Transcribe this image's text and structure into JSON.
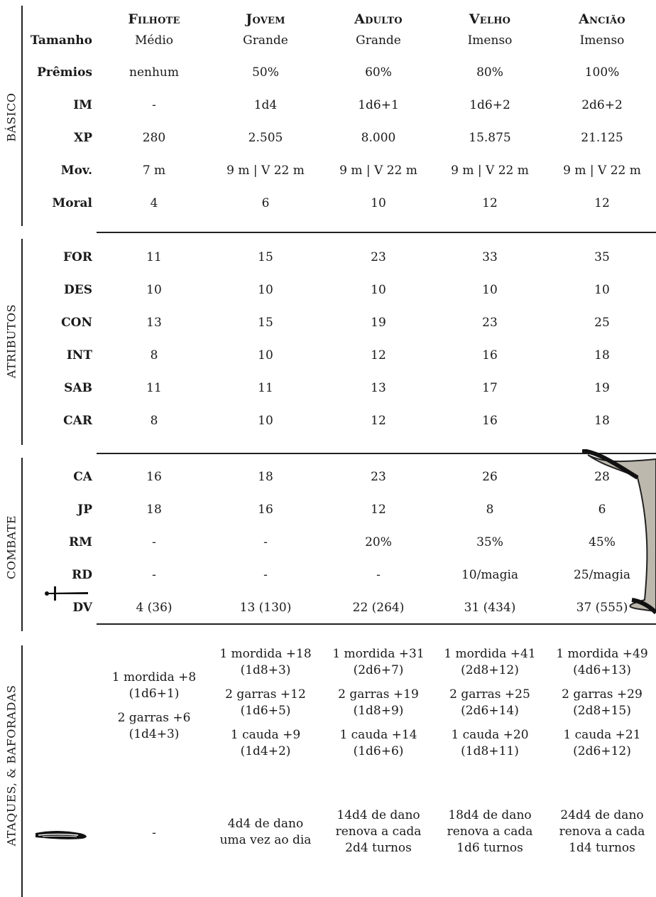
{
  "columns": [
    "Filhote",
    "Jovem",
    "Adulto",
    "Velho",
    "Ancião"
  ],
  "sections": {
    "basico": "Básico",
    "atributos": "Atributos",
    "combate": "Combate",
    "ataques": "Ataques, & Baforadas"
  },
  "rows": [
    {
      "label": "Tamanho",
      "values": [
        "Médio",
        "Grande",
        "Grande",
        "Imenso",
        "Imenso"
      ]
    },
    {
      "label": "Prêmios",
      "values": [
        "nenhum",
        "50%",
        "60%",
        "80%",
        "100%"
      ]
    },
    {
      "label": "IM",
      "values": [
        "-",
        "1d4",
        "1d6+1",
        "1d6+2",
        "2d6+2"
      ]
    },
    {
      "label": "XP",
      "values": [
        "280",
        "2.505",
        "8.000",
        "15.875",
        "21.125"
      ]
    },
    {
      "label": "Mov.",
      "values": [
        "7 m",
        "9 m | V 22 m",
        "9 m | V 22 m",
        "9 m | V 22 m",
        "9 m | V 22 m"
      ]
    },
    {
      "label": "Moral",
      "values": [
        "4",
        "6",
        "10",
        "12",
        "12"
      ]
    },
    {
      "label": "FOR",
      "values": [
        "11",
        "15",
        "23",
        "33",
        "35"
      ]
    },
    {
      "label": "DES",
      "values": [
        "10",
        "10",
        "10",
        "10",
        "10"
      ]
    },
    {
      "label": "CON",
      "values": [
        "13",
        "15",
        "19",
        "23",
        "25"
      ]
    },
    {
      "label": "INT",
      "values": [
        "8",
        "10",
        "12",
        "16",
        "18"
      ]
    },
    {
      "label": "SAB",
      "values": [
        "11",
        "11",
        "13",
        "17",
        "19"
      ]
    },
    {
      "label": "CAR",
      "values": [
        "8",
        "10",
        "12",
        "16",
        "18"
      ]
    },
    {
      "label": "CA",
      "values": [
        "16",
        "18",
        "23",
        "26",
        "28"
      ]
    },
    {
      "label": "JP",
      "values": [
        "18",
        "16",
        "12",
        "8",
        "6"
      ]
    },
    {
      "label": "RM",
      "values": [
        "-",
        "-",
        "20%",
        "35%",
        "45%"
      ]
    },
    {
      "label": "RD",
      "values": [
        "-",
        "-",
        "-",
        "10/magia",
        "25/magia"
      ]
    },
    {
      "label": "DV",
      "values": [
        "4 (36)",
        "13 (130)",
        "22 (264)",
        "31 (434)",
        "37 (555)"
      ]
    }
  ],
  "attacks": [
    [
      [
        "1 mordida +8",
        "(1d6+1)",
        "",
        "2 garras +6",
        "(1d4+3)"
      ],
      [
        "1 mordida +18",
        "(1d8+3)",
        "",
        "2 garras +12",
        "(1d6+5)",
        "",
        "1 cauda +9",
        "(1d4+2)"
      ],
      [
        "1 mordida +31",
        "(2d6+7)",
        "",
        "2 garras +19",
        "(1d8+9)",
        "",
        "1 cauda +14",
        "(1d6+6)"
      ],
      [
        "1 mordida +41",
        "(2d8+12)",
        "",
        "2 garras +25",
        "(2d6+14)",
        "",
        "1 cauda +20",
        "(1d8+11)"
      ],
      [
        "1 mordida +49",
        "(4d6+13)",
        "",
        "2 garras +29",
        "(2d8+15)",
        "",
        "1 cauda +21",
        "(2d6+12)"
      ]
    ]
  ],
  "breath": [
    [
      "-"
    ],
    [
      "4d4 de dano",
      "uma vez ao dia"
    ],
    [
      "14d4 de dano",
      "renova a cada",
      "2d4 turnos"
    ],
    [
      "18d4 de dano",
      "renova a cada",
      "1d6 turnos"
    ],
    [
      "24d4 de dano",
      "renova a cada",
      "1d4 turnos"
    ]
  ],
  "icons": {
    "attack": "sword-icon",
    "breath": "breath-icon",
    "decoration": "scroll-banner-icon"
  }
}
